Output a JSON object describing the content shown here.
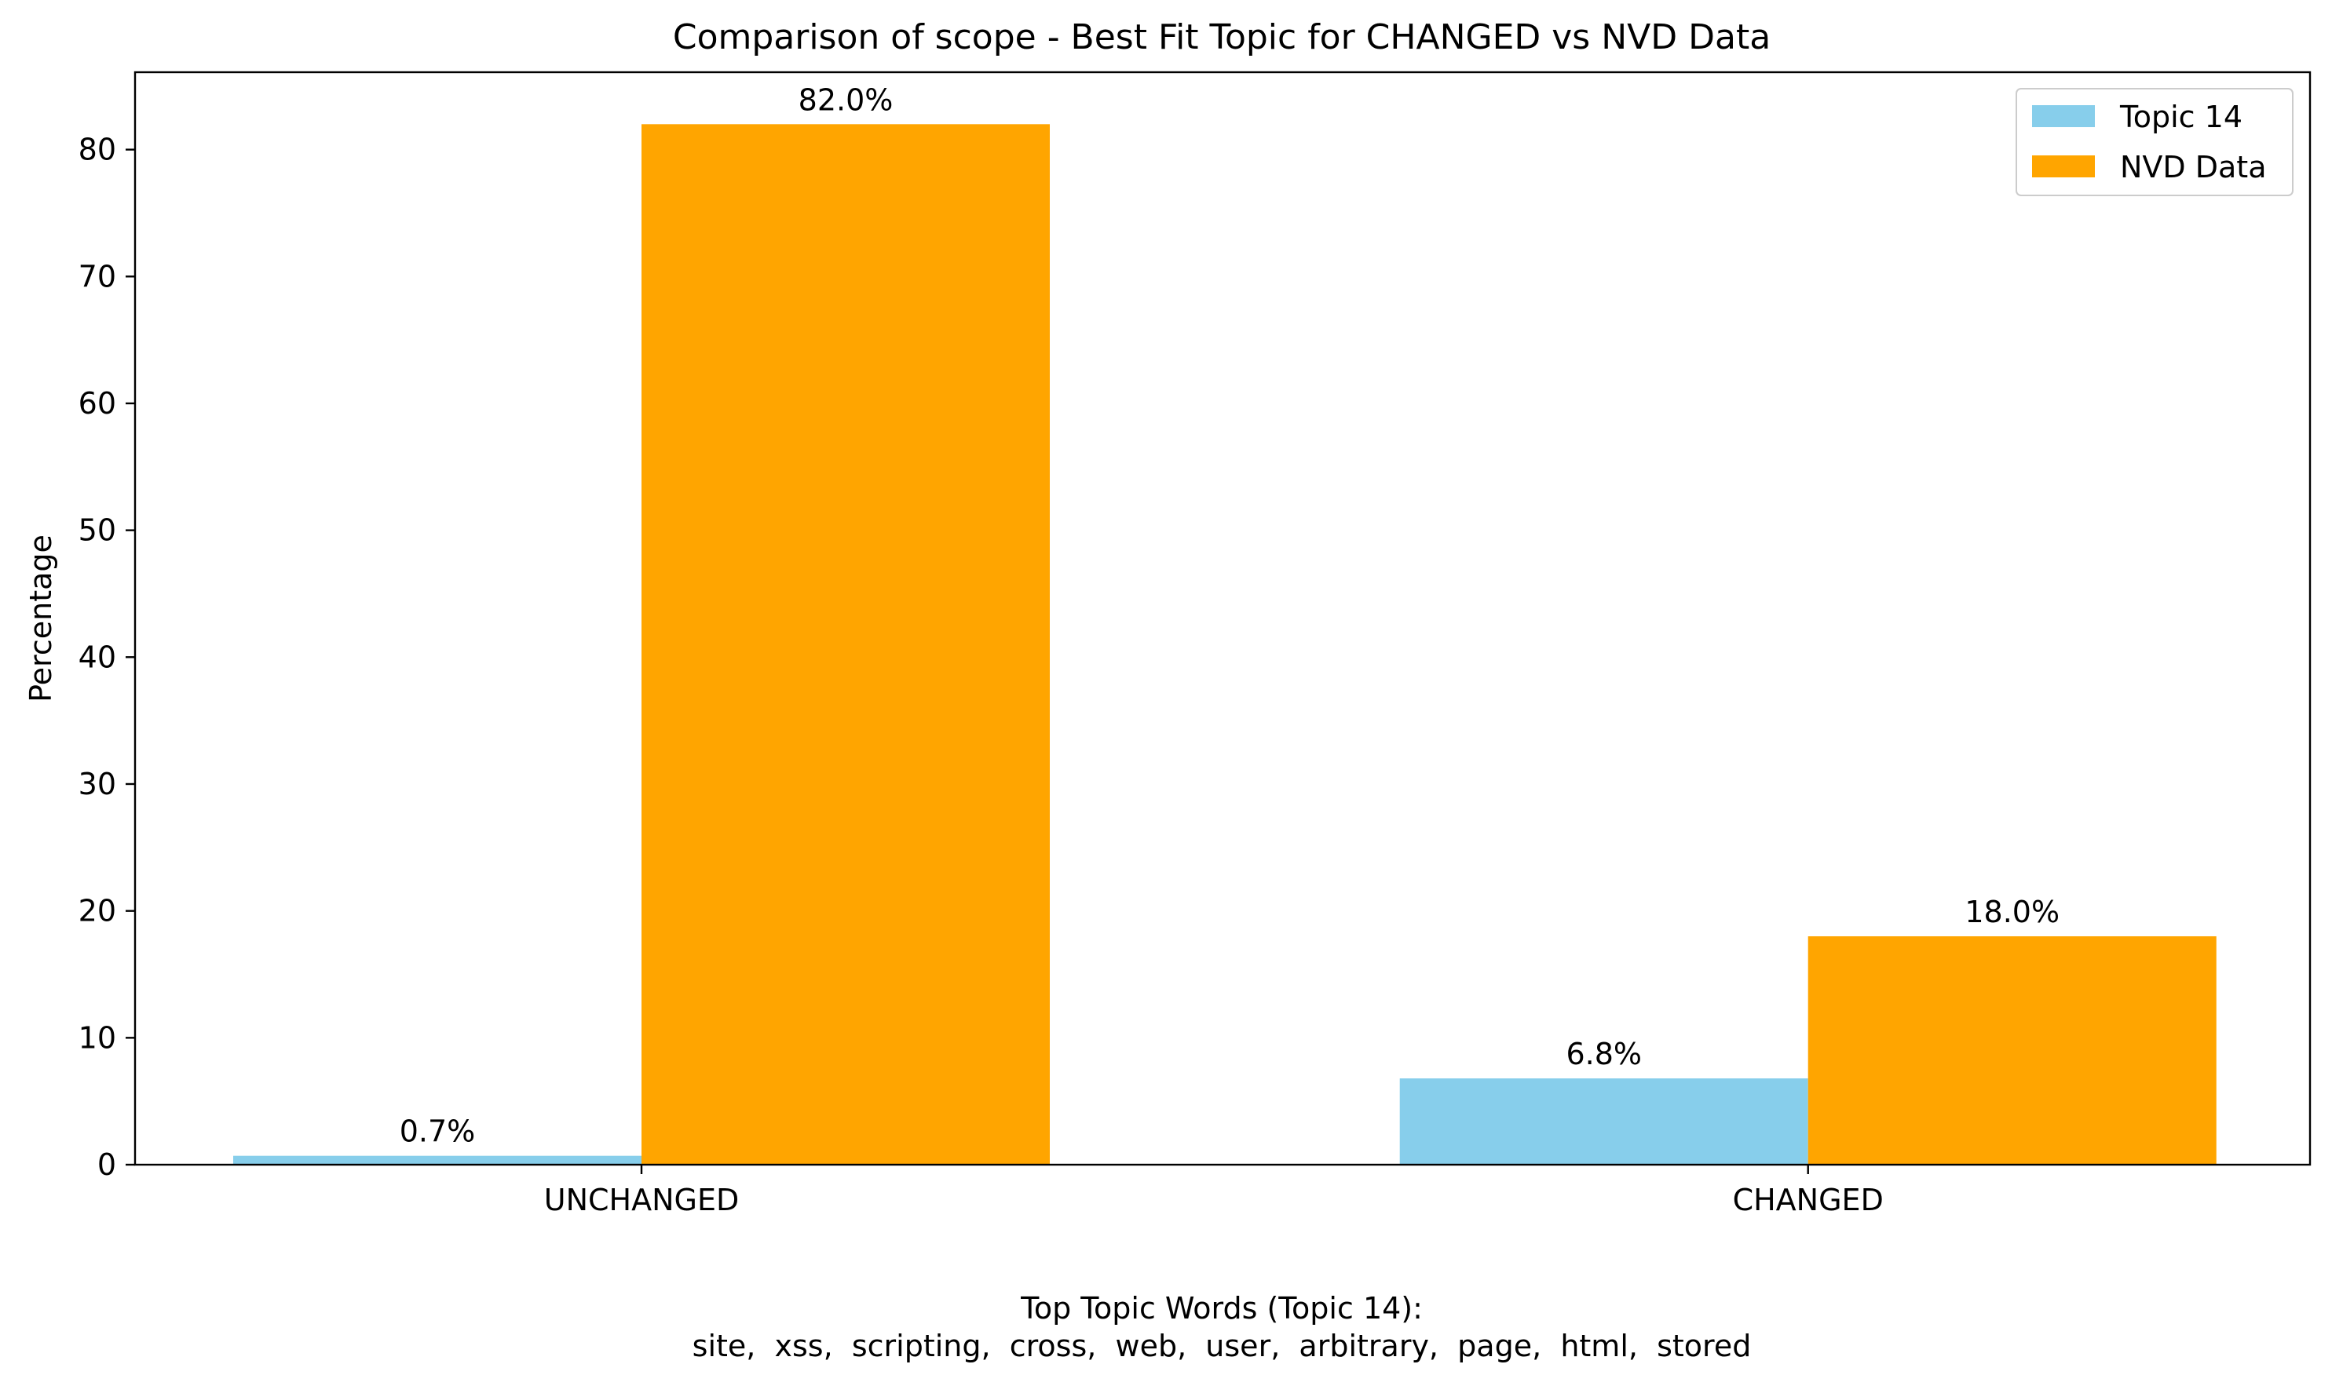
{
  "chart_data": {
    "type": "bar",
    "title": "Comparison of scope - Best Fit Topic for CHANGED vs NVD Data",
    "xlabel": "",
    "ylabel": "Percentage",
    "categories": [
      "UNCHANGED",
      "CHANGED"
    ],
    "series": [
      {
        "name": "Topic 14",
        "color": "#87CEEB",
        "values": [
          0.7,
          6.8
        ],
        "labels": [
          "0.7%",
          "6.8%"
        ]
      },
      {
        "name": "NVD Data",
        "color": "#FFA500",
        "values": [
          82.0,
          18.0
        ],
        "labels": [
          "82.0%",
          "18.0%"
        ]
      }
    ],
    "ylim": [
      0,
      86.1
    ],
    "yticks": [
      0,
      10,
      20,
      30,
      40,
      50,
      60,
      70,
      80
    ],
    "grid": false,
    "legend_position": "top-right"
  },
  "footnote": {
    "heading": "Top Topic Words (Topic 14):",
    "words": "site,  xss,  scripting,  cross,  web,  user,  arbitrary,  page,  html,  stored"
  }
}
